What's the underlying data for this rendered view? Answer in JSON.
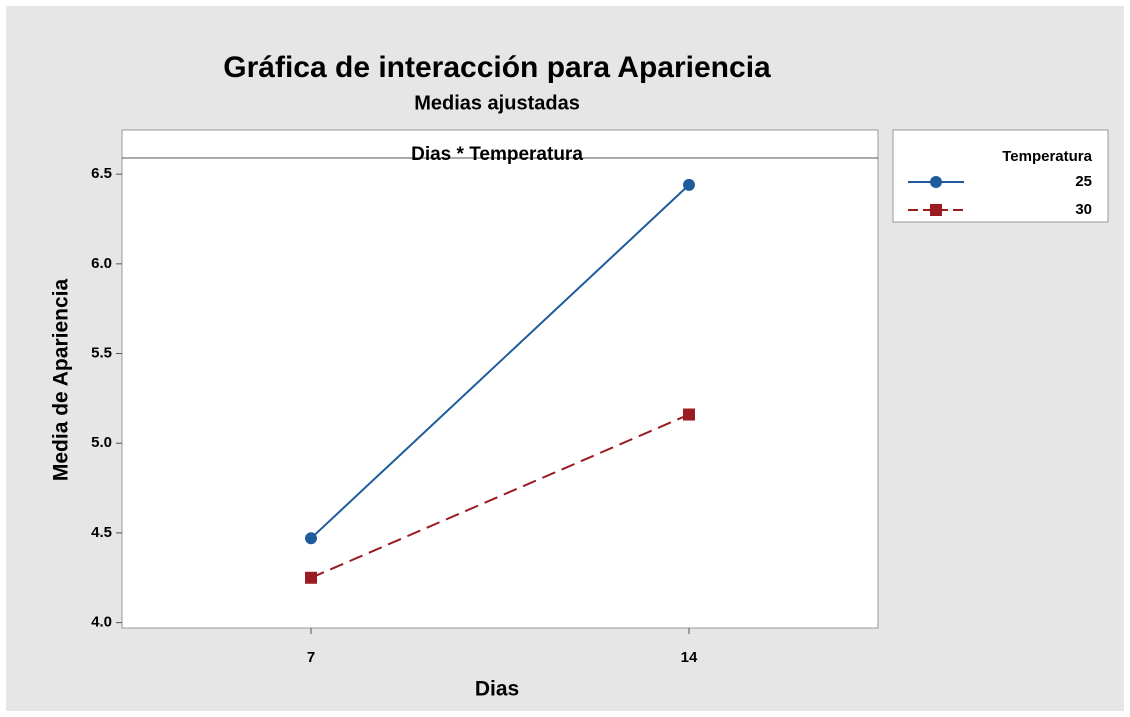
{
  "chart_data": {
    "type": "line",
    "title": "Gráfica de interacción para Apariencia",
    "subtitle": "Medias ajustadas",
    "panel_title": "Dias * Temperatura",
    "xlabel": "Dias",
    "ylabel": "Media de Apariencia",
    "legend_title": "Temperatura",
    "legend": "outside-right",
    "categories": [
      "7",
      "14"
    ],
    "series": [
      {
        "name": "25",
        "color": "#1f5c9e",
        "marker": "circle",
        "linestyle": "solid",
        "values": [
          4.47,
          6.44
        ]
      },
      {
        "name": "30",
        "color": "#9a1b22",
        "marker": "square",
        "linestyle": "dashed",
        "values": [
          4.25,
          5.16
        ]
      }
    ],
    "ylim": [
      3.97,
      6.59
    ],
    "yticks": [
      {
        "value": 4,
        "label": "4.0"
      },
      4.5,
      {
        "value": 5,
        "label": "5.0"
      },
      5.5,
      {
        "value": 6,
        "label": "6.0"
      },
      6.5
    ]
  }
}
